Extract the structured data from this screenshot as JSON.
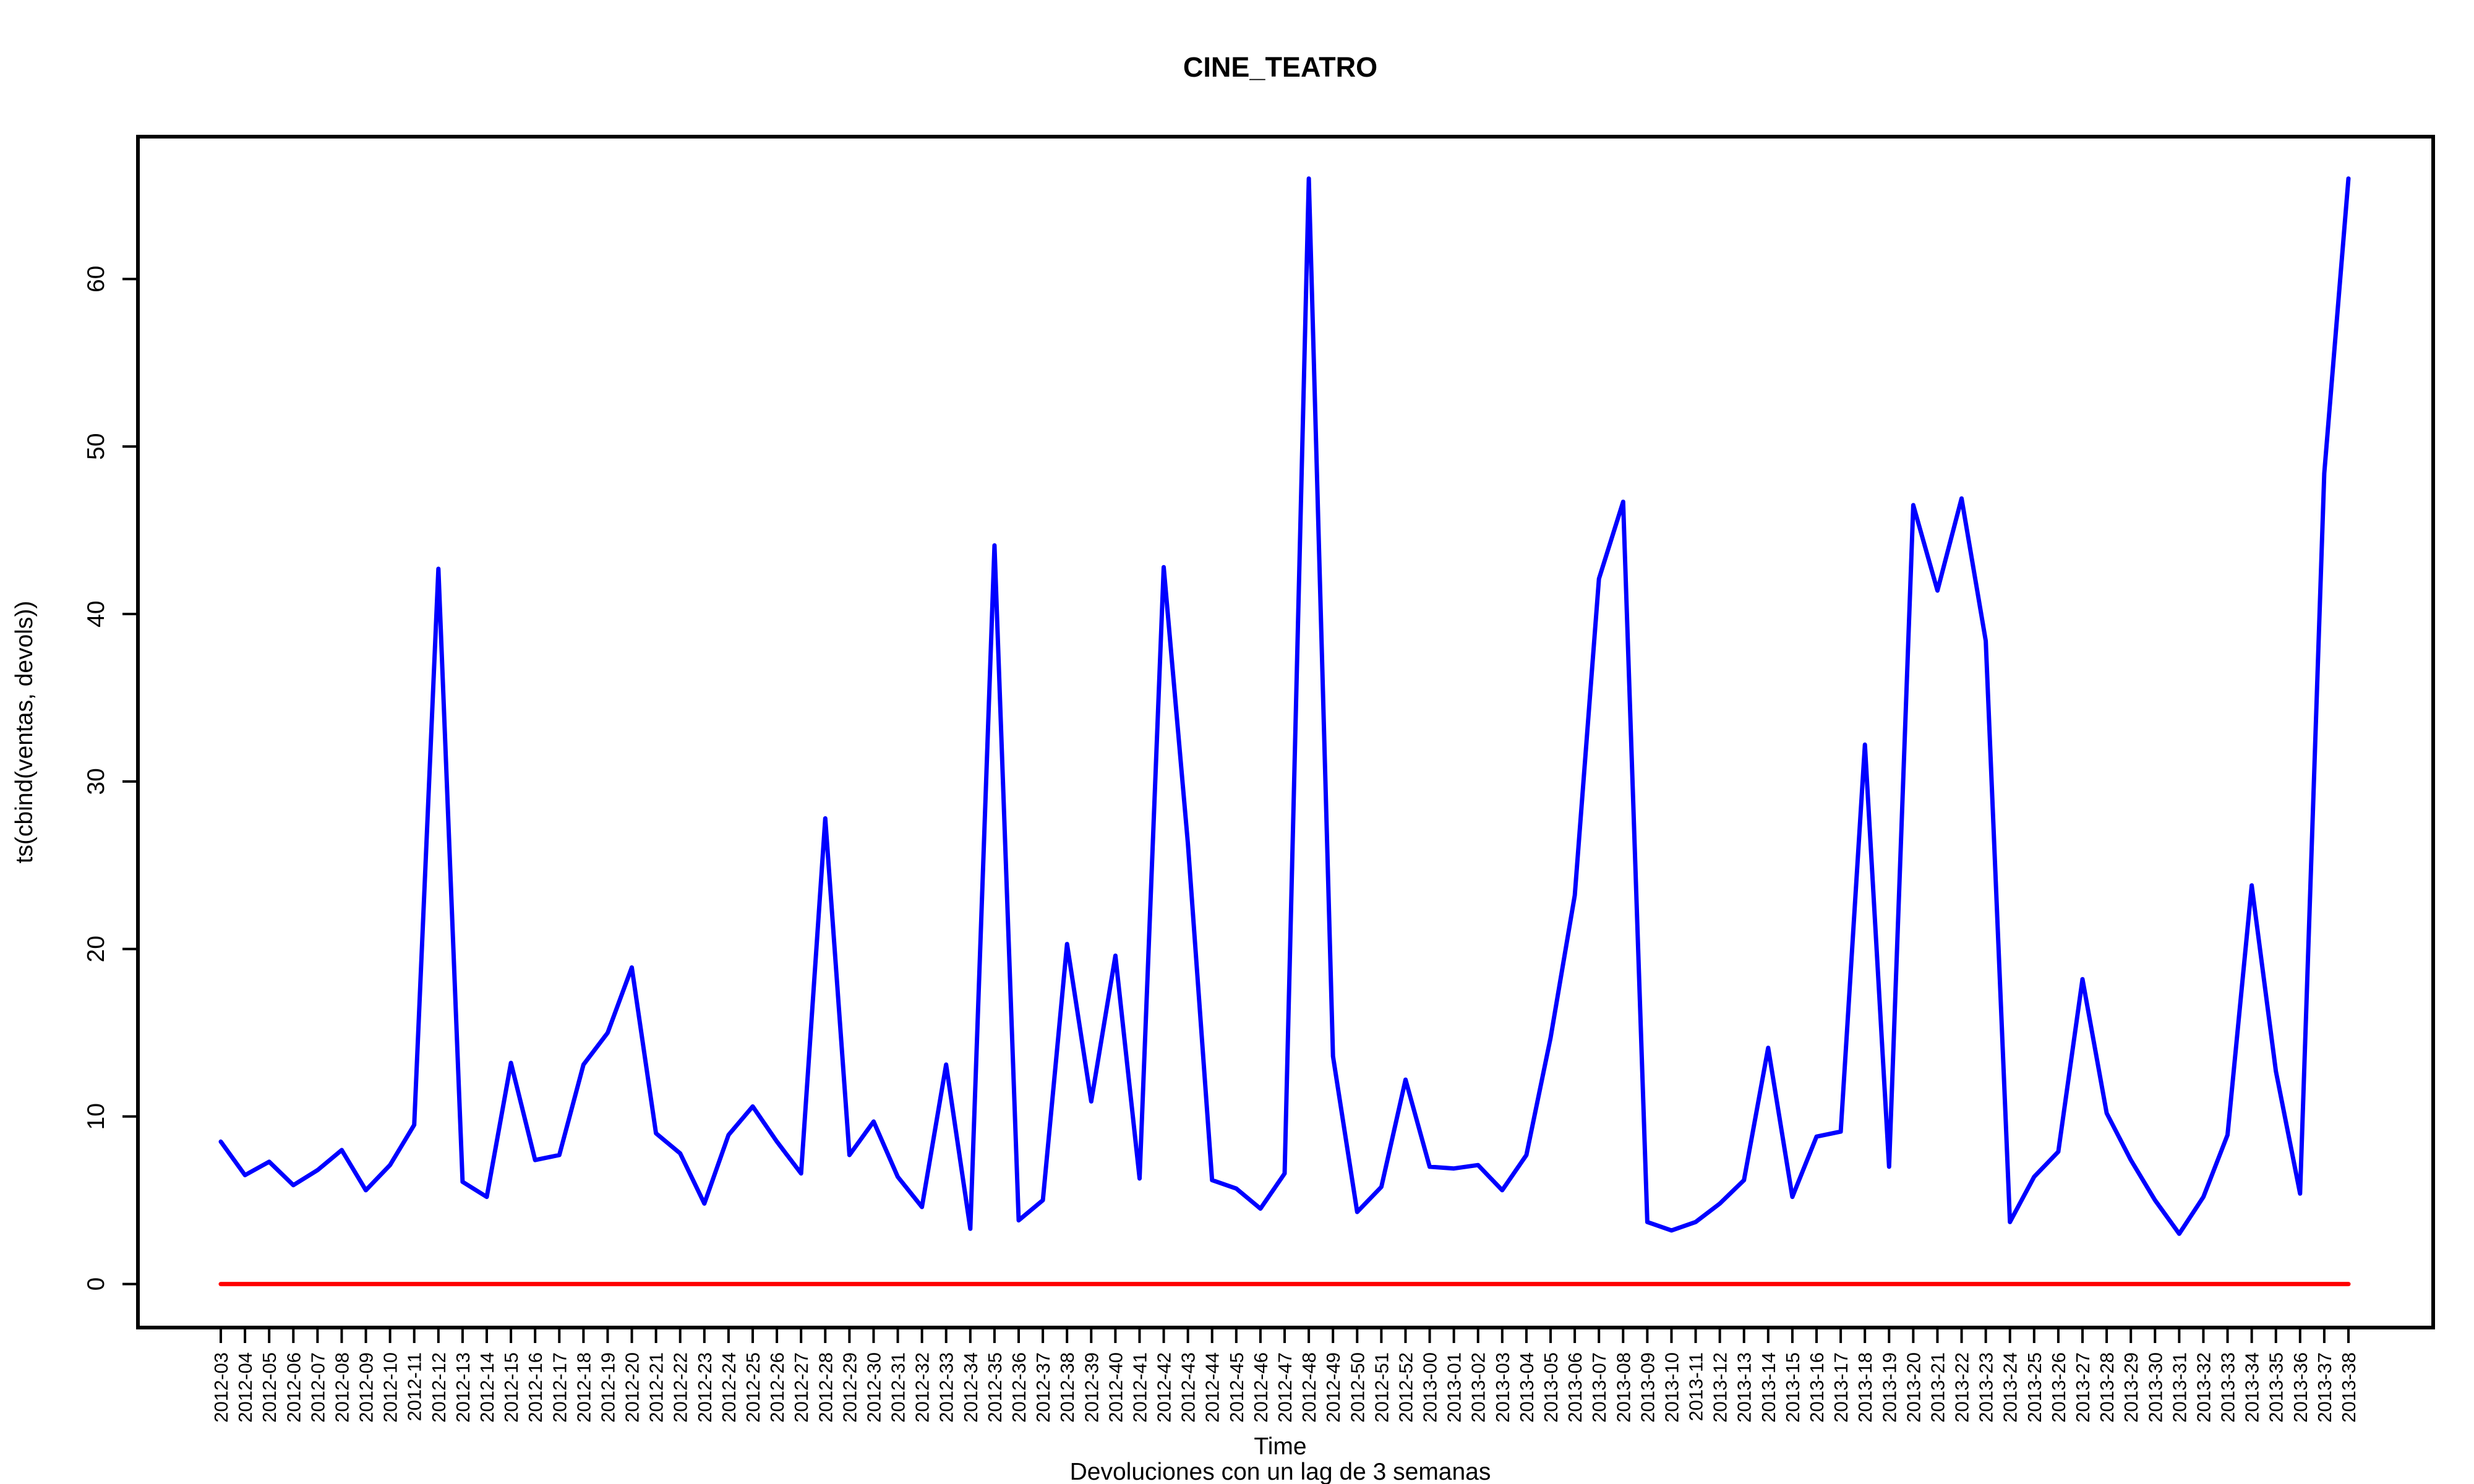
{
  "chart_data": {
    "type": "line",
    "title": "CINE_TEATRO",
    "xlabel": "Time",
    "subtitle": "Devoluciones con un lag de 3 semanas",
    "ylabel": "ts(cbind(ventas, devols))",
    "ylim": [
      -2.6,
      68.5
    ],
    "yticks": [
      0,
      10,
      20,
      30,
      40,
      50,
      60
    ],
    "grid": false,
    "legend": "none",
    "categories": [
      "2012-03",
      "2012-04",
      "2012-05",
      "2012-06",
      "2012-07",
      "2012-08",
      "2012-09",
      "2012-10",
      "2012-11",
      "2012-12",
      "2012-13",
      "2012-14",
      "2012-15",
      "2012-16",
      "2012-17",
      "2012-18",
      "2012-19",
      "2012-20",
      "2012-21",
      "2012-22",
      "2012-23",
      "2012-24",
      "2012-25",
      "2012-26",
      "2012-27",
      "2012-28",
      "2012-29",
      "2012-30",
      "2012-31",
      "2012-32",
      "2012-33",
      "2012-34",
      "2012-35",
      "2012-36",
      "2012-37",
      "2012-38",
      "2012-39",
      "2012-40",
      "2012-41",
      "2012-42",
      "2012-43",
      "2012-44",
      "2012-45",
      "2012-46",
      "2012-47",
      "2012-48",
      "2012-49",
      "2012-50",
      "2012-51",
      "2012-52",
      "2013-00",
      "2013-01",
      "2013-02",
      "2013-03",
      "2013-04",
      "2013-05",
      "2013-06",
      "2013-07",
      "2013-08",
      "2013-09",
      "2013-10",
      "2013-11",
      "2013-12",
      "2013-13",
      "2013-14",
      "2013-15",
      "2013-16",
      "2013-17",
      "2013-18",
      "2013-19",
      "2013-20",
      "2013-21",
      "2013-22",
      "2013-23",
      "2013-24",
      "2013-25",
      "2013-26",
      "2013-27",
      "2013-28",
      "2013-29",
      "2013-30",
      "2013-31",
      "2013-32",
      "2013-33",
      "2013-34",
      "2013-35",
      "2013-36",
      "2013-37",
      "2013-38"
    ],
    "series": [
      {
        "color": "#0000ff",
        "values": [
          8.5,
          6.5,
          7.3,
          5.9,
          6.8,
          8.0,
          5.6,
          7.1,
          9.5,
          42.7,
          6.1,
          5.2,
          13.2,
          7.4,
          7.7,
          13.1,
          15.0,
          18.9,
          9.0,
          7.8,
          4.8,
          8.9,
          10.6,
          8.5,
          6.6,
          27.8,
          7.7,
          9.7,
          6.4,
          4.6,
          13.1,
          3.3,
          44.1,
          3.8,
          5.0,
          20.3,
          10.9,
          19.6,
          6.3,
          42.8,
          26.3,
          6.2,
          5.7,
          4.5,
          6.6,
          66.0,
          13.6,
          4.3,
          5.8,
          12.2,
          7.0,
          6.9,
          7.1,
          5.6,
          7.7,
          14.7,
          23.2,
          42.1,
          46.7,
          3.7,
          3.2,
          3.7,
          4.8,
          6.2,
          14.1,
          5.2,
          8.8,
          9.1,
          32.2,
          7.0,
          46.5,
          41.4,
          46.9,
          38.4,
          3.7,
          6.4,
          7.9,
          18.2,
          10.2,
          7.4,
          5.0,
          3.0,
          5.2,
          8.9,
          23.8,
          12.7,
          5.4,
          48.4,
          66.0
        ]
      },
      {
        "color": "#ff0000",
        "values": [
          0,
          0,
          0,
          0,
          0,
          0,
          0,
          0,
          0,
          0,
          0,
          0,
          0,
          0,
          0,
          0,
          0,
          0,
          0,
          0,
          0,
          0,
          0,
          0,
          0,
          0,
          0,
          0,
          0,
          0,
          0,
          0,
          0,
          0,
          0,
          0,
          0,
          0,
          0,
          0,
          0,
          0,
          0,
          0,
          0,
          0,
          0,
          0,
          0,
          0,
          0,
          0,
          0,
          0,
          0,
          0,
          0,
          0,
          0,
          0,
          0,
          0,
          0,
          0,
          0,
          0,
          0,
          0,
          0,
          0,
          0,
          0,
          0,
          0,
          0,
          0,
          0,
          0,
          0,
          0,
          0,
          0,
          0,
          0,
          0,
          0,
          0,
          0,
          0
        ]
      }
    ]
  }
}
